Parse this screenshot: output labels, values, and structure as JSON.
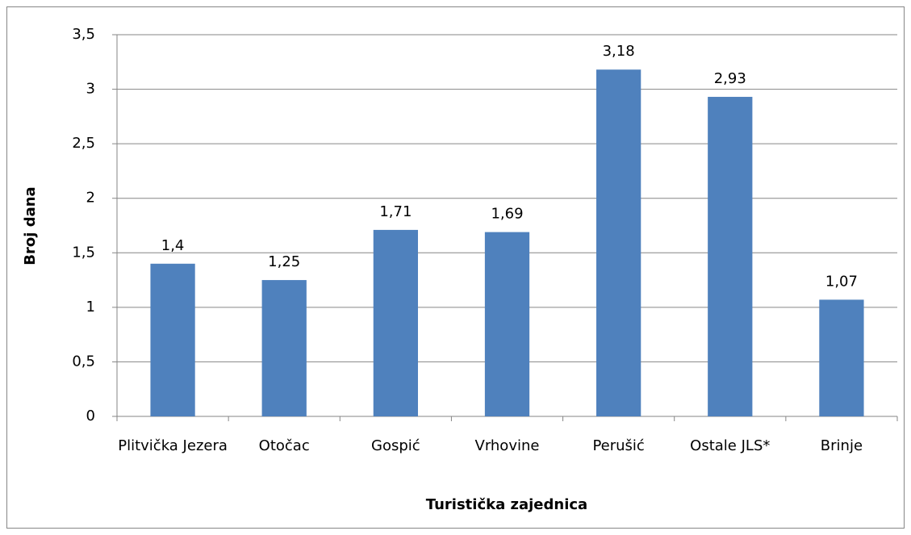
{
  "chart_data": {
    "type": "bar",
    "x_label": "Turistička zajednica",
    "y_label": "Broj dana",
    "categories": [
      "Plitvička Jezera",
      "Otočac",
      "Gospić",
      "Vrhovine",
      "Perušić",
      "Ostale JLS*",
      "Brinje"
    ],
    "values": [
      1.4,
      1.25,
      1.71,
      1.69,
      3.18,
      2.93,
      1.07
    ],
    "value_labels": [
      "1,4",
      "1,25",
      "1,71",
      "1,69",
      "3,18",
      "2,93",
      "1,07"
    ],
    "color": "#4f81bd",
    "ylim": [
      0,
      3.5
    ],
    "yticks": [
      0,
      {
        "value": 0.5,
        "label": "0,5"
      },
      1,
      {
        "value": 1.5,
        "label": "1,5"
      },
      2,
      {
        "value": 2.5,
        "label": "2,5"
      },
      3,
      {
        "value": 3.5,
        "label": "3,5"
      }
    ],
    "grid": true
  }
}
